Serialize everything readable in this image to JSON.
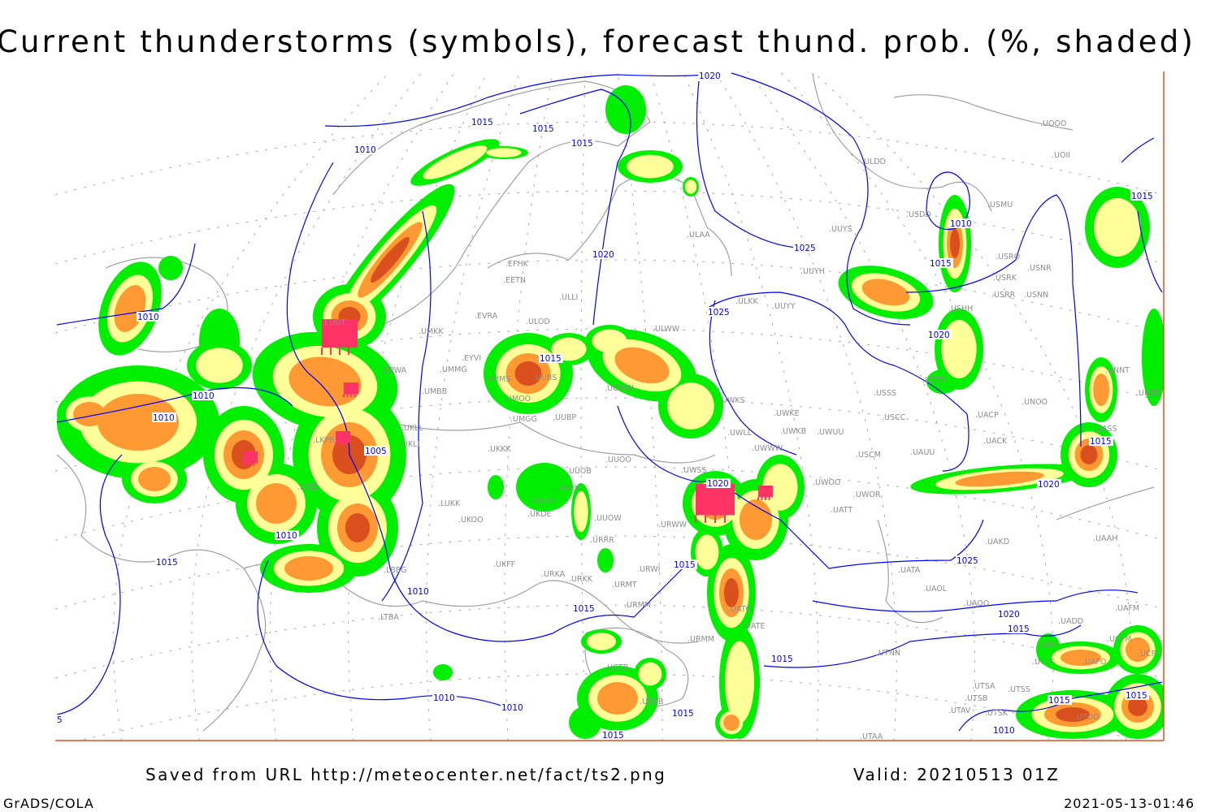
{
  "title": "Current thunderstorms (symbols), forecast thund. prob. (%, shaded)",
  "footer": {
    "saved": "Saved from URL http://meteocenter.net/fact/ts2.png",
    "valid": "Valid: 20210513 01Z",
    "software": "GrADS/COLA",
    "timestamp": "2021-05-13-01:46"
  },
  "colors": {
    "isobar": "#0000ff",
    "coastline": "#a0a0a0",
    "prob_low": "#00ee00",
    "prob_mid": "#ffff99",
    "prob_high": "#ff9933",
    "prob_top": "#d9501e",
    "thunderstorm_symbol": "#ff3366",
    "frame": "#e05020"
  },
  "stations": [
    "ULDD",
    "UUYS",
    "ULAA",
    "UUYH",
    "ULKK",
    "UUYY",
    "ULWW",
    "USDD",
    "USMU",
    "UOOO",
    "UOII",
    "USRO",
    "USRK",
    "USNR",
    "USRR",
    "USNN",
    "USHH",
    "USTR",
    "USSS",
    "USCC",
    "UNOO",
    "UACP",
    "UACK",
    "UWUU",
    "UWKE",
    "UWKB",
    "UWKS",
    "UWLL",
    "UWWW",
    "USCM",
    "UAUU",
    "UNNT",
    "UNBB",
    "UASS",
    "UWOO",
    "UWOR",
    "UATT",
    "UAKD",
    "UAAH",
    "UATA",
    "UAOL",
    "UAOO",
    "UAFM",
    "UADD",
    "UAII",
    "UTNN",
    "UTSA",
    "UTSS",
    "UTSB",
    "UTAV",
    "UTSK",
    "UTAA",
    "UWSS",
    "URWW",
    "URWI",
    "UATG",
    "UATE",
    "URMM",
    "EPWA",
    "UMMG",
    "EYVI",
    "UMBB",
    "UMKK",
    "EVRA",
    "ULOD",
    "UMMS",
    "UMOO",
    "UUBS",
    "UMGG",
    "UUBP",
    "UUWW",
    "UKLL",
    "UKLI",
    "UKKK",
    "UUOO",
    "UUOB",
    "UKHH",
    "UKDD",
    "UKDE",
    "UKFF",
    "UKOO",
    "LUKK",
    "URKA",
    "URKK",
    "URMT",
    "URMM",
    "URRR",
    "UUOW",
    "UBBB",
    "UGTB",
    "EFHK",
    "EETN",
    "ULLI",
    "EDDT",
    "LKPR",
    "LBBG",
    "LTBA",
    "LYBE",
    "UTDD",
    "UTTT",
    "UAFO",
    "UCFM",
    "UCFL"
  ],
  "isobar_labels": [
    "1020",
    "1015",
    "1015",
    "1015",
    "1010",
    "1020",
    "1025",
    "1025",
    "1010",
    "1015",
    "1010",
    "1010",
    "1005",
    "1010",
    "1015",
    "1010",
    "1015",
    "1015",
    "1020",
    "1015",
    "1010",
    "1015",
    "1020",
    "1015",
    "1020",
    "1025",
    "1020",
    "1015",
    "1015",
    "1015",
    "1010",
    "1015",
    "1010",
    "1010",
    "1015",
    "1015",
    "5"
  ]
}
